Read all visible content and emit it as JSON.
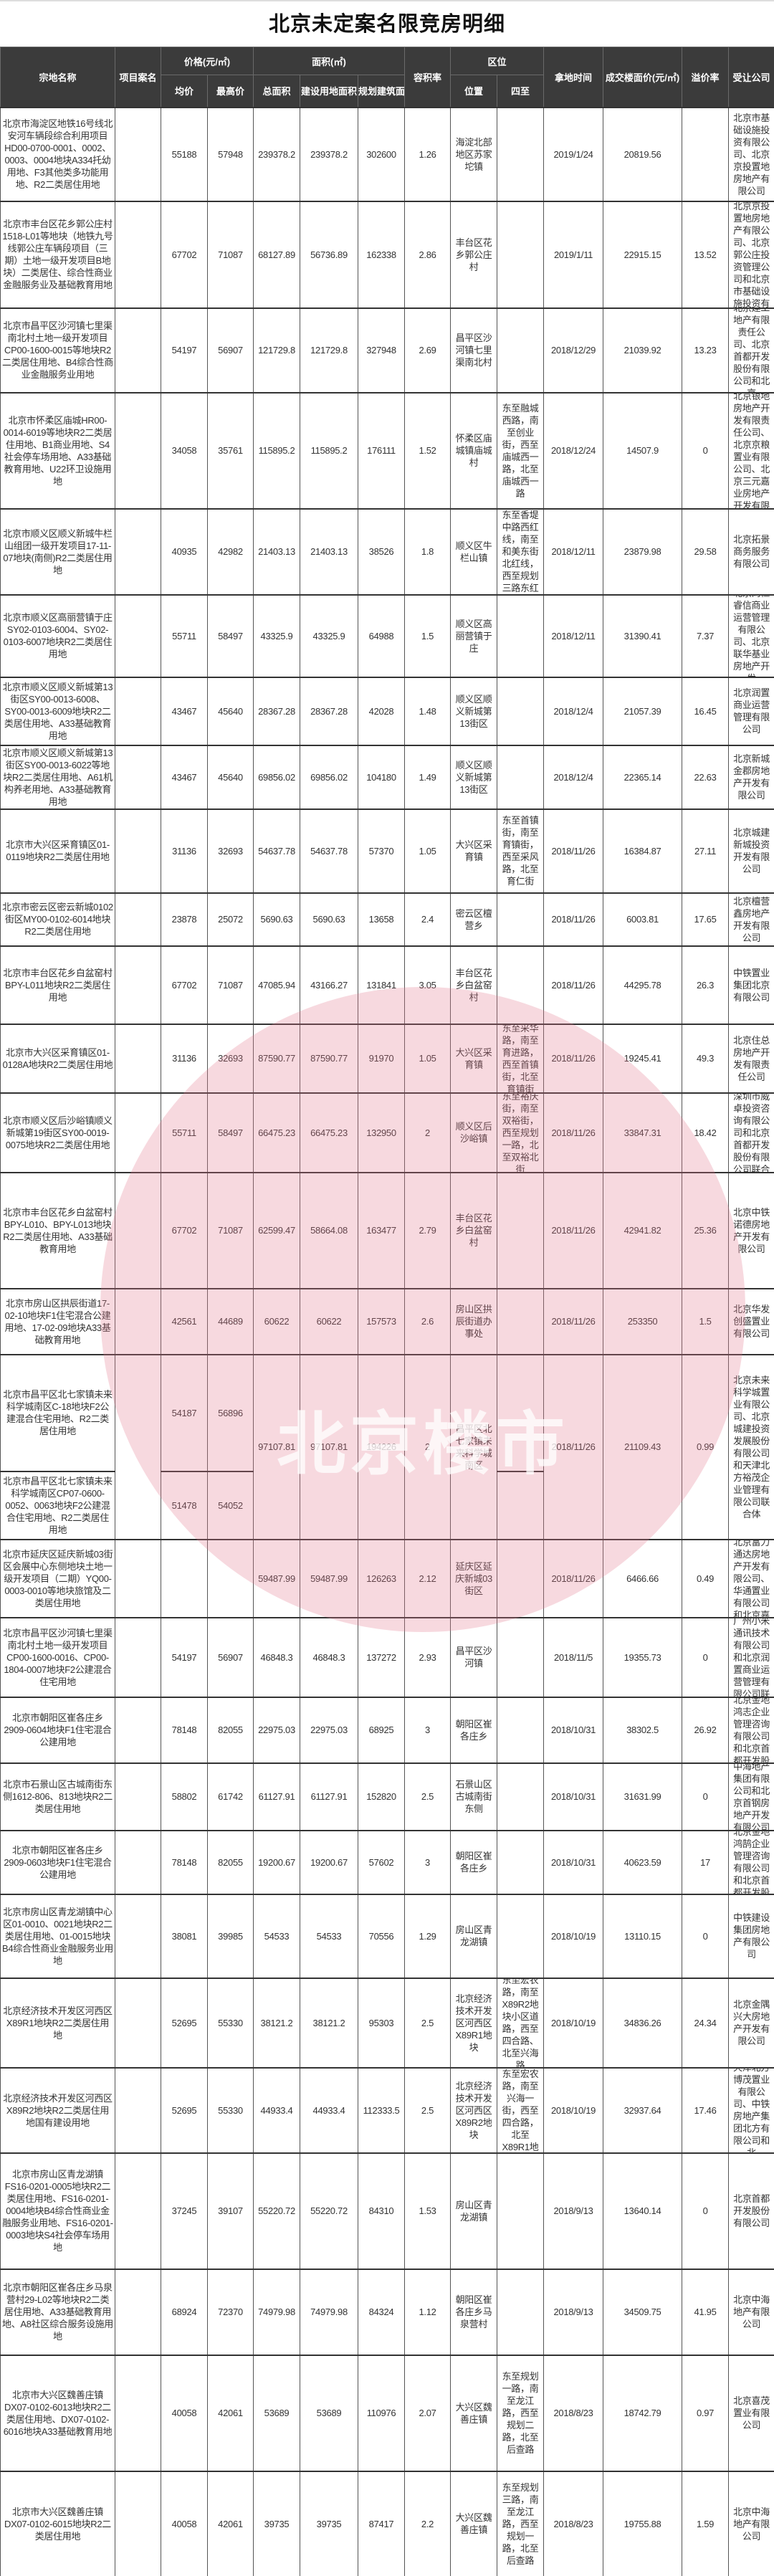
{
  "title": "北京未定案名限竞房明细",
  "headers": {
    "name": "宗地名称",
    "project": "项目案名",
    "price_group": "价格(元/㎡)",
    "avg_price": "均价",
    "max_price": "最高价",
    "area_group": "面积(㎡)",
    "total_area": "总面积",
    "land_area": "建设用地面积",
    "planned_area": "规划建筑面积",
    "far": "容积率",
    "location_group": "区位",
    "location": "位置",
    "boundaries": "四至",
    "date": "拿地时间",
    "floor_price": "成交楼面价(元/㎡)",
    "premium": "溢价率",
    "company": "受让公司"
  },
  "watermark": {
    "logo_text": "北京楼市",
    "color": "#e2788c"
  },
  "rows": [
    {
      "name": "北京市海淀区地铁16号线北安河车辆段综合利用项目HD00-0700-0001、0002、0003、0004地块A334托幼用地、F3其他类多功能用地、R2二类居住用地",
      "project": "",
      "avg": "55188",
      "max": "57948",
      "total": "239378.2",
      "land": "239378.2",
      "planned": "302600",
      "far": "1.26",
      "location": "海淀北部地区苏家坨镇",
      "bounds": "",
      "date": "2019/1/24",
      "price": "20819.56",
      "premium": "",
      "company": "北京市基础设施投资有限公司、北京京投置地房地产有限公司"
    },
    {
      "name": "北京市丰台区花乡郭公庄村1518-L01等地块（地铁九号线郭公庄车辆段项目（三期）土地一级开发项目B地块）二类居住、综合性商业金融服务业及基础教育用地",
      "project": "",
      "avg": "67702",
      "max": "71087",
      "total": "68127.89",
      "land": "56736.89",
      "planned": "162338",
      "far": "2.86",
      "location": "丰台区花乡郭公庄村",
      "bounds": "",
      "date": "2019/1/11",
      "price": "22915.15",
      "premium": "13.52",
      "company": "北京京投置地房地产有限公司、北京郭公庄投资管理公司和北京市基础设施投资有"
    },
    {
      "name": "北京市昌平区沙河镇七里渠南北村土地一级开发项目CP00-1600-0015等地块R2二类居住用地、B4综合性商业金融服务业用地",
      "project": "",
      "avg": "54197",
      "max": "56907",
      "total": "121729.8",
      "land": "121729.8",
      "planned": "327948",
      "far": "2.69",
      "location": "昌平区沙河镇七里渠南北村",
      "bounds": "",
      "date": "2018/12/29",
      "price": "21039.92",
      "premium": "13.23",
      "company": "北京建工地产有限责任公司、北京首都开发股份有限公司和北京"
    },
    {
      "name": "北京市怀柔区庙城HR00-0014-6019等地块R2二类居住用地、B1商业用地、S4社会停车场用地、A33基础教育用地、U22环卫设施用地",
      "project": "",
      "avg": "34058",
      "max": "35761",
      "total": "115895.2",
      "land": "115895.2",
      "planned": "176111",
      "far": "1.52",
      "location": "怀柔区庙城镇庙城村",
      "bounds": "东至融城西路，南至创业街，西至庙城西一路，北至庙城西一路",
      "date": "2018/12/24",
      "price": "14507.9",
      "premium": "0",
      "company": "北京银地房地产开发有限责任公司、北京京粮置业有限公司、北京三元嘉业房地产开发有限"
    },
    {
      "name": "北京市顺义区顺义新城牛栏山组团一级开发项目17-11-07地块(南侧)R2二类居住用地",
      "project": "",
      "avg": "40935",
      "max": "42982",
      "total": "21403.13",
      "land": "21403.13",
      "planned": "38526",
      "far": "1.8",
      "location": "顺义区牛栏山镇",
      "bounds": "东至香堤中路西红线，南至和美东街北红线，西至规划三路东红",
      "date": "2018/12/11",
      "price": "23879.98",
      "premium": "29.58",
      "company": "北京拓景商务服务有限公司"
    },
    {
      "name": "北京市顺义区高丽营镇于庄SY02-0103-6004、SY02-0103-6007地块R2二类居住用地",
      "project": "",
      "avg": "55711",
      "max": "58497",
      "total": "43325.9",
      "land": "43325.9",
      "planned": "64988",
      "far": "1.5",
      "location": "顺义区高丽营镇于庄",
      "bounds": "",
      "date": "2018/12/11",
      "price": "31390.41",
      "premium": "7.37",
      "company": "北京尚恒睿信商业运营管理有限公司、北京联华基业房地产开发"
    },
    {
      "name": "北京市顺义区顺义新城第13街区SY00-0013-6008、SY00-0013-6009地块R2二类居住用地、A33基础教育用地",
      "project": "",
      "avg": "43467",
      "max": "45640",
      "total": "28367.28",
      "land": "28367.28",
      "planned": "42028",
      "far": "1.48",
      "location": "顺义区顺义新城第13街区",
      "bounds": "",
      "date": "2018/12/4",
      "price": "21057.39",
      "premium": "16.45",
      "company": "北京润置商业运营管理有限公司"
    },
    {
      "name": "北京市顺义区顺义新城第13街区SY00-0013-6022等地块R2二类居住用地、A61机构养老用地、A33基础教育用地",
      "project": "",
      "avg": "43467",
      "max": "45640",
      "total": "69856.02",
      "land": "69856.02",
      "planned": "104180",
      "far": "1.49",
      "location": "顺义区顺义新城第13街区",
      "bounds": "",
      "date": "2018/12/4",
      "price": "22365.14",
      "premium": "22.63",
      "company": "北京新城金郡房地产开发有限公司"
    },
    {
      "name": "北京市大兴区采育镇区01-0119地块R2二类居住用地",
      "project": "",
      "avg": "31136",
      "max": "32693",
      "total": "54637.78",
      "land": "54637.78",
      "planned": "57370",
      "far": "1.05",
      "location": "大兴区采育镇",
      "bounds": "东至首镇街，南至育镇街，西至采风路，北至育仁街",
      "date": "2018/11/26",
      "price": "16384.87",
      "premium": "27.11",
      "company": "北京城建新城投资开发有限公司"
    },
    {
      "name": "北京市密云区密云新城0102街区MY00-0102-6014地块R2二类居住用地",
      "project": "",
      "avg": "23878",
      "max": "25072",
      "total": "5690.63",
      "land": "5690.63",
      "planned": "13658",
      "far": "2.4",
      "location": "密云区檀营乡",
      "bounds": "",
      "date": "2018/11/26",
      "price": "6003.81",
      "premium": "17.65",
      "company": "北京檀营鑫房地产开发有限公司"
    },
    {
      "name": "北京市丰台区花乡白盆窑村BPY-L011地块R2二类居住用地",
      "project": "",
      "avg": "67702",
      "max": "71087",
      "total": "47085.94",
      "land": "43166.27",
      "planned": "131841",
      "far": "3.05",
      "location": "丰台区花乡白盆窑村",
      "bounds": "",
      "date": "2018/11/26",
      "price": "44295.78",
      "premium": "26.3",
      "company": "中铁置业集团北京有限公司"
    },
    {
      "name": "北京市大兴区采育镇区01-0128A地块R2二类居住用地",
      "project": "",
      "avg": "31136",
      "max": "32693",
      "total": "87590.77",
      "land": "87590.77",
      "planned": "91970",
      "far": "1.05",
      "location": "大兴区采育镇",
      "bounds": "东至采华路，南至育进路，西至首镇街，北至育镇街",
      "date": "2018/11/26",
      "price": "19245.41",
      "premium": "49.3",
      "company": "北京住总房地产开发有限责任公司"
    },
    {
      "name": "北京市顺义区后沙峪镇顺义新城第19街区SY00-0019-0075地块R2二类居住用地",
      "project": "",
      "avg": "55711",
      "max": "58497",
      "total": "66475.23",
      "land": "66475.23",
      "planned": "132950",
      "far": "2",
      "location": "顺义区后沙峪镇",
      "bounds": "东至裕庆街，南至双裕街，西至规划一路，北至双裕北街",
      "date": "2018/11/26",
      "price": "33847.31",
      "premium": "18.42",
      "company": "深圳市威卓投资咨询有限公司和北京首都开发股份有限公司联合"
    },
    {
      "name": "北京市丰台区花乡白盆窑村BPY-L010、BPY-L013地块R2二类居住用地、A33基础教育用地",
      "project": "",
      "avg": "67702",
      "max": "71087",
      "total": "62599.47",
      "land": "58664.08",
      "planned": "163477",
      "far": "2.79",
      "location": "丰台区花乡白盆窑村",
      "bounds": "",
      "date": "2018/11/26",
      "price": "42941.82",
      "premium": "25.36",
      "company": "北京中铁诺德房地产开发有限公司"
    },
    {
      "name": "北京市房山区拱辰街道17-02-10地块F1住宅混合公建用地、17-02-09地块A33基础教育用地",
      "project": "",
      "avg": "42561",
      "max": "44689",
      "total": "60622",
      "land": "60622",
      "planned": "157573",
      "far": "2.6",
      "location": "房山区拱辰街道办事处",
      "bounds": "",
      "date": "2018/11/26",
      "price": "253350",
      "premium": "1.5",
      "company": "北京华发创盛置业有限公司"
    },
    {
      "sub_rows": [
        {
          "name": "北京市昌平区北七家镇未来科学城南区C-18地块F2公建混合住宅用地、R2二类居住用地",
          "avg": "54187",
          "max": "56896",
          "bounds": ""
        },
        {
          "name": "北京市昌平区北七家镇未来科学城南区CP07-0600-0052、0063地块F2公建混合住宅用地、R2二类居住用地",
          "avg": "51478",
          "max": "54052",
          "bounds": ""
        }
      ],
      "project": "",
      "total": "97107.81",
      "land": "97107.81",
      "planned": "194226",
      "far": "2",
      "location": "昌平区北七家镇未来科学城南区",
      "date": "2018/11/26",
      "price": "21109.43",
      "premium": "0.99",
      "company": "北京未来科学城置业有限公司、北京城建投资发展股份有限公司和天津北方裕茂企业管理有限公司联合体"
    },
    {
      "name": "北京市延庆区延庆新城03街区会展中心东侧地块土地一级开发项目（二期）YQ00-0003-0010等地块旅馆及二类居住用地",
      "project": "",
      "avg": "",
      "max": "",
      "total": "59487.99",
      "land": "59487.99",
      "planned": "126263",
      "far": "2.12",
      "location": "延庆区延庆新城03街区",
      "bounds": "",
      "date": "2018/11/26",
      "price": "6466.66",
      "premium": "0.49",
      "company": "北京富力通达房地产开发有限公司、华通置业有限公司和北京嘉"
    },
    {
      "name": "北京市昌平区沙河镇七里渠南北村土地一级开发项目CP00-1600-0016、CP00-1804-0007地块F2公建混合住宅用地",
      "project": "",
      "avg": "54197",
      "max": "56907",
      "total": "46848.3",
      "land": "46848.3",
      "planned": "137272",
      "far": "2.93",
      "location": "昌平区沙河镇",
      "bounds": "",
      "date": "2018/11/5",
      "price": "19355.73",
      "premium": "0",
      "company": "广州小米通讯技术有限公司和北京润置商业运营管理有限公司联"
    },
    {
      "name": "北京市朝阳区崔各庄乡2909-0604地块F1住宅混合公建用地",
      "project": "",
      "avg": "78148",
      "max": "82055",
      "total": "22975.03",
      "land": "22975.03",
      "planned": "68925",
      "far": "3",
      "location": "朝阳区崔各庄乡",
      "bounds": "",
      "date": "2018/10/31",
      "price": "38302.5",
      "premium": "26.92",
      "company": "北京金地鸿志企业管理咨询有限公司和北京首都开发股"
    },
    {
      "name": "北京市石景山区古城南街东侧1612-806、813地块R2二类居住用地",
      "project": "",
      "avg": "58802",
      "max": "61742",
      "total": "61127.91",
      "land": "61127.91",
      "planned": "152820",
      "far": "2.5",
      "location": "石景山区古城南街东侧",
      "bounds": "",
      "date": "2018/10/31",
      "price": "31631.99",
      "premium": "0",
      "company": "中海地产集团有限公司和北京首钢房地产开发有限公司"
    },
    {
      "name": "北京市朝阳区崔各庄乡2909-0603地块F1住宅混合公建用地",
      "project": "",
      "avg": "78148",
      "max": "82055",
      "total": "19200.67",
      "land": "19200.67",
      "planned": "57602",
      "far": "3",
      "location": "朝阳区崔各庄乡",
      "bounds": "",
      "date": "2018/10/31",
      "price": "40623.59",
      "premium": "17",
      "company": "北京金地鸿鹄企业管理咨询有限公司和北京首都开发股"
    },
    {
      "name": "北京市房山区青龙湖镇中心区01-0010、0021地块R2二类居住用地、01-0015地块B4综合性商业金融服务业用地",
      "project": "",
      "avg": "38081",
      "max": "39985",
      "total": "54533",
      "land": "54533",
      "planned": "70556",
      "far": "1.29",
      "location": "房山区青龙湖镇",
      "bounds": "",
      "date": "2018/10/19",
      "price": "13110.15",
      "premium": "0",
      "company": "中铁建设集团房地产有限公司"
    },
    {
      "name": "北京经济技术开发区河西区X89R1地块R2二类居住用地",
      "project": "",
      "avg": "52695",
      "max": "55330",
      "total": "38121.2",
      "land": "38121.2",
      "planned": "95303",
      "far": "2.5",
      "location": "北京经济技术开发区河西区X89R1地块",
      "bounds": "东至宏农路，南至X89R2地块小区道路，西至四合路、北至兴海路",
      "date": "2018/10/19",
      "price": "34836.26",
      "premium": "24.34",
      "company": "北京金隅兴大房地产开发有限公司"
    },
    {
      "name": "北京经济技术开发区河西区X89R2地块R2二类居住用地国有建设用地",
      "project": "",
      "avg": "52695",
      "max": "55330",
      "total": "44933.4",
      "land": "44933.4",
      "planned": "112333.5",
      "far": "2.5",
      "location": "北京经济技术开发区河西区X89R2地块",
      "bounds": "东至宏农路，南至兴海一街，西至四合路，北至X89R1地",
      "date": "2018/10/19",
      "price": "32937.64",
      "premium": "17.46",
      "company": "天津北方博茂置业有限公司、中铁房地产集团北方有限公司和北"
    },
    {
      "name": "北京市房山区青龙湖镇FS16-0201-0005地块R2二类居住用地、FS16-0201-0004地块B4综合性商业金融服务业用地、FS16-0201-0003地块S4社会停车场用地",
      "project": "",
      "avg": "37245",
      "max": "39107",
      "total": "55220.72",
      "land": "55220.72",
      "planned": "84310",
      "far": "1.53",
      "location": "房山区青龙湖镇",
      "bounds": "",
      "date": "2018/9/13",
      "price": "13640.14",
      "premium": "0",
      "company": "北京首都开发股份有限公司"
    },
    {
      "name": "北京市朝阳区崔各庄乡马泉营村29-L02等地块R2二类居住用地、A33基础教育用地、A8社区综合服务设施用地",
      "project": "",
      "avg": "68924",
      "max": "72370",
      "total": "74979.98",
      "land": "74979.98",
      "planned": "84324",
      "far": "1.12",
      "location": "朝阳区崔各庄乡马泉营村",
      "bounds": "",
      "date": "2018/9/13",
      "price": "34509.75",
      "premium": "41.95",
      "company": "北京中海地产有限公司"
    },
    {
      "name": "北京市大兴区魏善庄镇DX07-0102-6013地块R2二类居住用地、DX07-0102-6016地块A33基础教育用地",
      "project": "",
      "avg": "40058",
      "max": "42061",
      "total": "53689",
      "land": "53689",
      "planned": "110976",
      "far": "2.07",
      "location": "大兴区魏善庄镇",
      "bounds": "东至规划一路，南至龙江路，西至规划二路，北至后查路",
      "date": "2018/8/23",
      "price": "18742.79",
      "premium": "0.97",
      "company": "北京喜茂置业有限公司"
    },
    {
      "name": "北京市大兴区魏善庄镇DX07-0102-6015地块R2二类居住用地",
      "project": "",
      "avg": "40058",
      "max": "42061",
      "total": "39735",
      "land": "39735",
      "planned": "87417",
      "far": "2.2",
      "location": "大兴区魏善庄镇",
      "bounds": "东至规划三路，南至龙江路，西至规划一路，北至后查路",
      "date": "2018/8/23",
      "price": "19755.88",
      "premium": "1.59",
      "company": "北京中海地产有限公司"
    }
  ]
}
